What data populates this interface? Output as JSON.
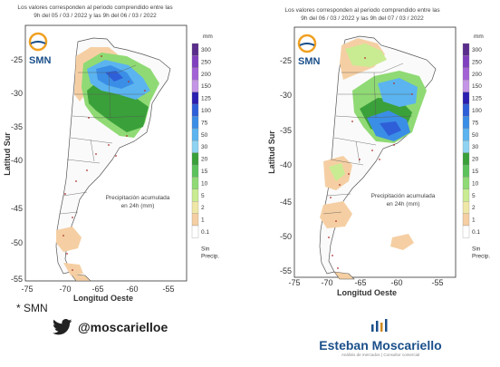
{
  "source_note": "* SMN",
  "twitter_handle": "@moscarielloe",
  "brand": {
    "name": "Esteban Moscariello",
    "subtitle": "Análisis de mercados | Consultor comercial"
  },
  "legend": {
    "unit": "mm",
    "labels": [
      "300",
      "250",
      "200",
      "150",
      "125",
      "100",
      "75",
      "50",
      "30",
      "20",
      "15",
      "10",
      "5",
      "2",
      "1",
      "0.1",
      "Sin",
      "Precip."
    ],
    "colors": [
      "#5a2d8c",
      "#7f3fbf",
      "#a361d6",
      "#c495e6",
      "#2a1fb0",
      "#2e5fd8",
      "#3b8ee6",
      "#5bb4ef",
      "#8fd3f2",
      "#3aa03a",
      "#5cc25c",
      "#8fda74",
      "#c9ec92",
      "#efe7a6",
      "#f5cfa3",
      "#ffffff"
    ]
  },
  "maps": [
    {
      "caption_line1": "Los valores corresponden al periodo comprendido entre las",
      "caption_line2": "9h del 05 / 03 / 2022  y las 9h del 06 / 03 / 2022",
      "logo_text": "SMN",
      "ylabel": "Latitud Sur",
      "xlabel": "Longitud Oeste",
      "yticks": [
        "-25",
        "-30",
        "-35",
        "-40",
        "-45",
        "-50",
        "-55"
      ],
      "xticks": [
        "-75",
        "-70",
        "-65",
        "-60",
        "-55"
      ],
      "note_line1": "Precipitación acumulada",
      "note_line2": "en 24h (mm)"
    },
    {
      "caption_line1": "Los valores corresponden al periodo comprendido entre las",
      "caption_line2": "9h del 06 / 03 / 2022  y las 9h del 07 / 03 / 2022",
      "logo_text": "SMN",
      "ylabel": "Latitud Sur",
      "xlabel": "Longitud Oeste",
      "yticks": [
        "-25",
        "-30",
        "-35",
        "-40",
        "-45",
        "-50",
        "-55"
      ],
      "xticks": [
        "-75",
        "-70",
        "-65",
        "-60",
        "-55"
      ],
      "note_line1": "Precipitación acumulada",
      "note_line2": "en 24h (mm)"
    }
  ]
}
